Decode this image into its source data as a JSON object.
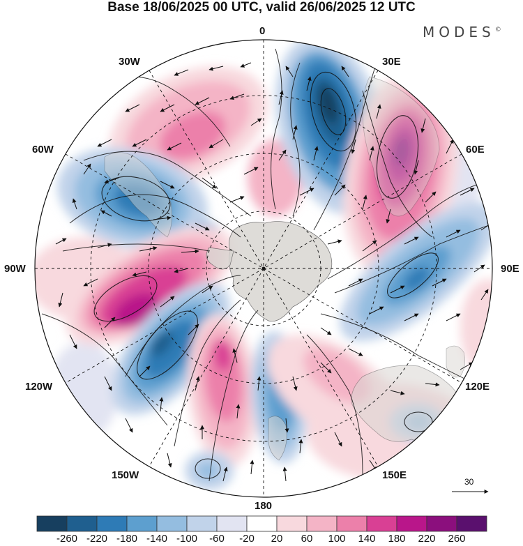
{
  "title": "Base 18/06/2025 00 UTC, valid 26/06/2025 12 UTC",
  "brand": "MODES",
  "brand_mark": "©",
  "meridian_labels": {
    "m0": "0",
    "m30e": "30E",
    "m60e": "60E",
    "m90e": "90E",
    "m120e": "120E",
    "m150e": "150E",
    "m180": "180",
    "m150w": "150W",
    "m120w": "120W",
    "m90w": "90W",
    "m60w": "60W",
    "m30w": "30W"
  },
  "vector_reference": "30",
  "colorbar": {
    "ticks": [
      "-260",
      "-220",
      "-180",
      "-140",
      "-100",
      "-60",
      "-20",
      "20",
      "60",
      "100",
      "140",
      "180",
      "220",
      "260"
    ],
    "colors": [
      "#173f5f",
      "#1f5f8f",
      "#2e7bb6",
      "#5d9fcf",
      "#94bde0",
      "#c1d3ea",
      "#e2e4f2",
      "#ffffff",
      "#f8d9de",
      "#f4b4c6",
      "#ec80aa",
      "#d94094",
      "#b9168a",
      "#8b0f7d",
      "#5a106e"
    ]
  },
  "colors": {
    "land": "#d9d6d2",
    "ice": "#ececec",
    "grid": "#111111"
  }
}
